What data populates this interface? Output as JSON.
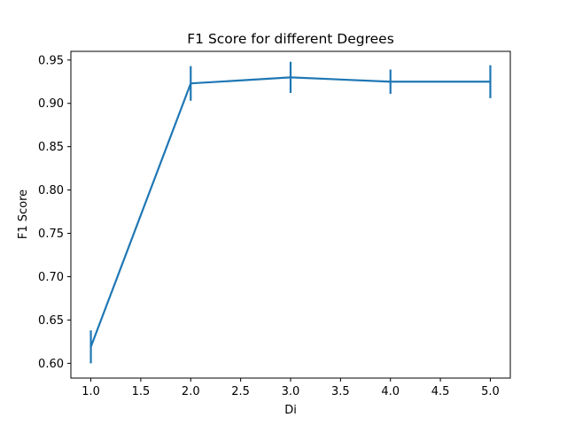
{
  "chart_data": {
    "type": "line",
    "title": "F1 Score for different Degrees",
    "xlabel": "Di",
    "ylabel": "F1 Score",
    "xlim": [
      0.8,
      5.2
    ],
    "ylim": [
      0.583,
      0.96
    ],
    "xticks": [
      "1.0",
      "1.5",
      "2.0",
      "2.5",
      "3.0",
      "3.5",
      "4.0",
      "4.5",
      "5.0"
    ],
    "yticks": [
      "0.60",
      "0.65",
      "0.70",
      "0.75",
      "0.80",
      "0.85",
      "0.90",
      "0.95"
    ],
    "grid": false,
    "series": [
      {
        "x": [
          1.0,
          2.0,
          3.0,
          4.0,
          5.0
        ],
        "y": [
          0.619,
          0.923,
          0.93,
          0.925,
          0.925
        ],
        "error": [
          0.019,
          0.02,
          0.018,
          0.014,
          0.019
        ],
        "color": "#1f77b4"
      }
    ]
  }
}
